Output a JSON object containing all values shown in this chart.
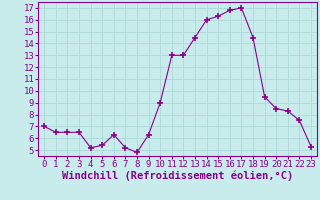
{
  "x": [
    0,
    1,
    2,
    3,
    4,
    5,
    6,
    7,
    8,
    9,
    10,
    11,
    12,
    13,
    14,
    15,
    16,
    17,
    18,
    19,
    20,
    21,
    22,
    23
  ],
  "y": [
    7.0,
    6.5,
    6.5,
    6.5,
    5.2,
    5.4,
    6.3,
    5.2,
    4.8,
    6.3,
    9.0,
    13.0,
    13.0,
    14.5,
    16.0,
    16.3,
    16.8,
    17.0,
    14.5,
    9.5,
    8.5,
    8.3,
    7.5,
    5.3
  ],
  "line_color": "#8B008B",
  "marker": "+",
  "marker_size": 4,
  "bg_color": "#c8ecec",
  "grid_color": "#b0d8d8",
  "ylim": [
    4.5,
    17.5
  ],
  "yticks": [
    5,
    6,
    7,
    8,
    9,
    10,
    11,
    12,
    13,
    14,
    15,
    16,
    17
  ],
  "xticks": [
    0,
    1,
    2,
    3,
    4,
    5,
    6,
    7,
    8,
    9,
    10,
    11,
    12,
    13,
    14,
    15,
    16,
    17,
    18,
    19,
    20,
    21,
    22,
    23
  ],
  "tick_color": "#8B008B",
  "axis_color": "#8B008B",
  "xlabel": "Windchill (Refroidissement éolien,°C)",
  "xlabel_color": "#8B008B",
  "xlabel_fontsize": 7.5,
  "tick_fontsize": 6.5
}
